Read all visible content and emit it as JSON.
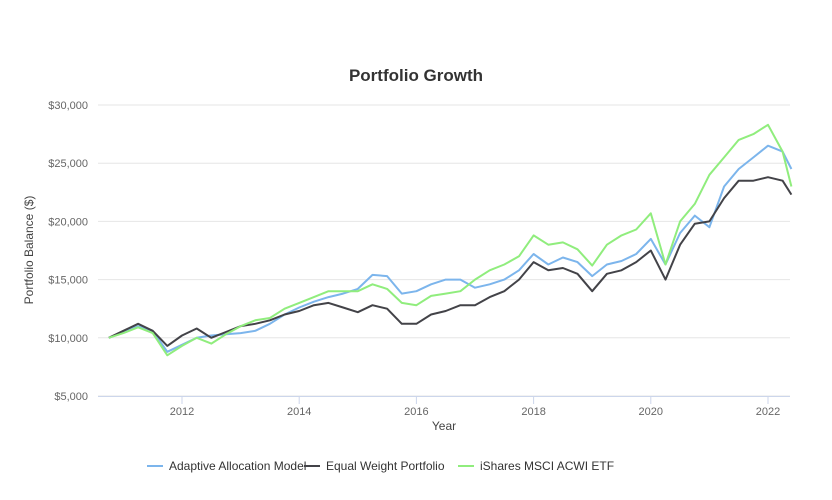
{
  "chart_data": {
    "type": "line",
    "title": "Portfolio Growth",
    "xlabel": "Year",
    "ylabel": "Portfolio Balance ($)",
    "ylim": [
      5000,
      30000
    ],
    "xlim": [
      2010.75,
      2022.4
    ],
    "grid": true,
    "legend": "bottom",
    "yticks": [
      "$5,000",
      "$10,000",
      "$15,000",
      "$20,000",
      "$25,000",
      "$30,000"
    ],
    "ytick_values": [
      5000,
      10000,
      15000,
      20000,
      25000,
      30000
    ],
    "xticks": [
      "2012",
      "2014",
      "2016",
      "2018",
      "2020",
      "2022"
    ],
    "xtick_values": [
      2012,
      2014,
      2016,
      2018,
      2020,
      2022
    ],
    "x": [
      2010.75,
      2011,
      2011.25,
      2011.5,
      2011.75,
      2012,
      2012.25,
      2012.5,
      2012.75,
      2013,
      2013.25,
      2013.5,
      2013.75,
      2014,
      2014.25,
      2014.5,
      2014.75,
      2015,
      2015.25,
      2015.5,
      2015.75,
      2016,
      2016.25,
      2016.5,
      2016.75,
      2017,
      2017.25,
      2017.5,
      2017.75,
      2018,
      2018.25,
      2018.5,
      2018.75,
      2019,
      2019.25,
      2019.5,
      2019.75,
      2020,
      2020.25,
      2020.5,
      2020.75,
      2021,
      2021.25,
      2021.5,
      2021.75,
      2022,
      2022.25,
      2022.4
    ],
    "series": [
      {
        "name": "Adaptive Allocation Model",
        "color": "#7cb5ec",
        "values": [
          10000,
          10500,
          11000,
          10600,
          8800,
          9400,
          10000,
          10200,
          10300,
          10400,
          10600,
          11200,
          12000,
          12600,
          13100,
          13500,
          13800,
          14200,
          15400,
          15300,
          13800,
          14000,
          14600,
          15000,
          15000,
          14300,
          14600,
          15000,
          15800,
          17200,
          16300,
          16900,
          16500,
          15300,
          16300,
          16600,
          17200,
          18500,
          16300,
          19000,
          20500,
          19500,
          23000,
          24500,
          25500,
          26500,
          26000,
          24500
        ]
      },
      {
        "name": "Equal Weight Portfolio",
        "color": "#434348",
        "values": [
          10000,
          10600,
          11200,
          10600,
          9300,
          10200,
          10800,
          10000,
          10500,
          11000,
          11200,
          11500,
          12000,
          12300,
          12800,
          13000,
          12600,
          12200,
          12800,
          12500,
          11200,
          11200,
          12000,
          12300,
          12800,
          12800,
          13500,
          14000,
          15000,
          16500,
          15800,
          16000,
          15500,
          14000,
          15500,
          15800,
          16500,
          17500,
          15000,
          18000,
          19800,
          20000,
          22000,
          23500,
          23500,
          23800,
          23500,
          22300
        ]
      },
      {
        "name": "iShares MSCI ACWI ETF",
        "color": "#90ed7d",
        "values": [
          10000,
          10400,
          10900,
          10400,
          8500,
          9300,
          10000,
          9500,
          10300,
          11000,
          11500,
          11700,
          12500,
          13000,
          13500,
          14000,
          14000,
          14000,
          14600,
          14200,
          13000,
          12800,
          13600,
          13800,
          14000,
          15000,
          15800,
          16300,
          17000,
          18800,
          18000,
          18200,
          17600,
          16200,
          18000,
          18800,
          19300,
          20700,
          16300,
          20000,
          21500,
          24000,
          25500,
          27000,
          27500,
          28300,
          26000,
          23000
        ]
      }
    ]
  }
}
